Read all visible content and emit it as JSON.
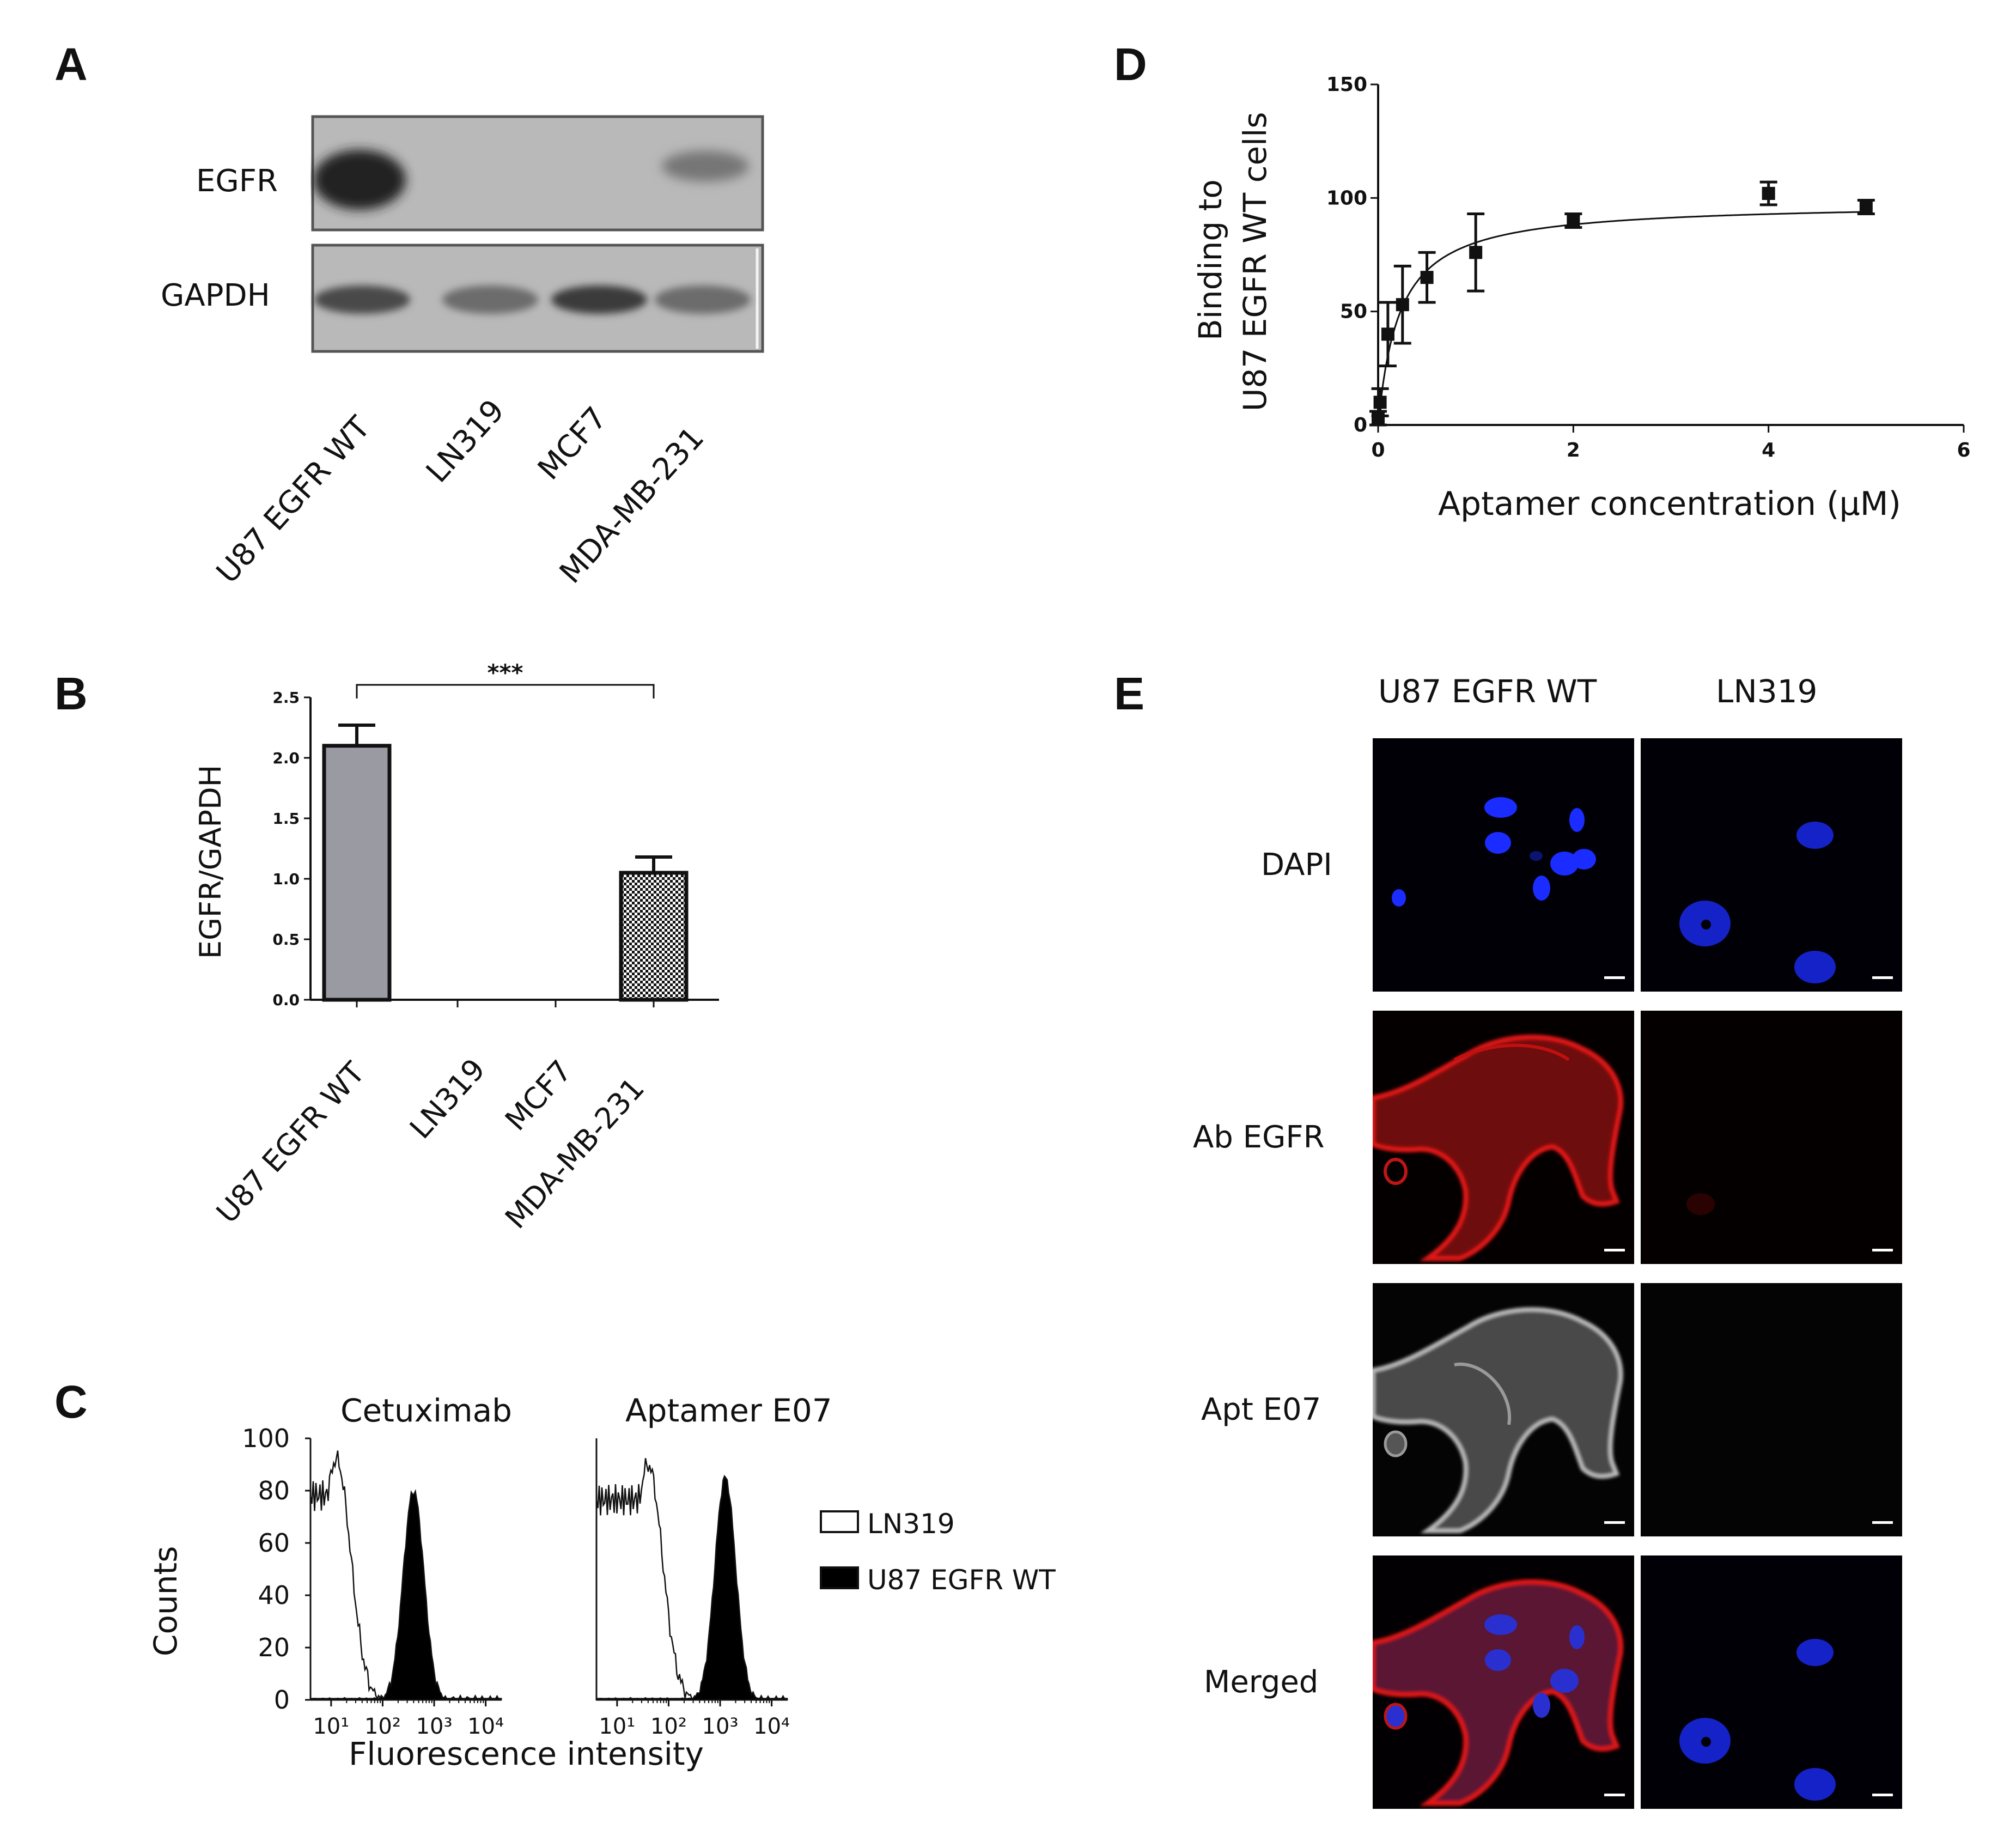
{
  "panels": {
    "A": "A",
    "B": "B",
    "C": "C",
    "D": "D",
    "E": "E"
  },
  "panel_a": {
    "row_labels": [
      "EGFR",
      "GAPDH"
    ],
    "lane_labels": [
      "U87 EGFR WT",
      "LN319",
      "MCF7",
      "MDA-MB-231"
    ],
    "egfr_band_intensity": [
      1.0,
      0.0,
      0.0,
      0.45
    ],
    "gapdh_band_intensity": [
      0.8,
      0.55,
      0.9,
      0.55
    ]
  },
  "panel_b": {
    "chart_data": {
      "type": "bar",
      "categories": [
        "U87 EGFR WT",
        "LN319",
        "MCF7",
        "MDA-MB-231"
      ],
      "values": [
        2.1,
        0,
        0,
        1.05
      ],
      "errors": [
        0.17,
        0,
        0,
        0.13
      ],
      "ylabel": "EGFR/GAPDH",
      "ylim": [
        0,
        2.5
      ],
      "yticks": [
        "0.0",
        "0.5",
        "1.0",
        "1.5",
        "2.0",
        "2.5"
      ],
      "significance": "***",
      "bar_fills": [
        "#9a9aa2",
        "#ffffff",
        "#ffffff",
        "checkered"
      ]
    }
  },
  "panel_c": {
    "chart_data": [
      {
        "type": "area",
        "title": "Cetuximab",
        "x_scale": "log",
        "xticks": [
          "10¹",
          "10²",
          "10³",
          "10⁴"
        ],
        "yticks": [
          "0",
          "20",
          "40",
          "60",
          "80",
          "100"
        ],
        "ylim": [
          0,
          100
        ],
        "series": [
          {
            "name": "LN319",
            "fill": "none",
            "peak_log_x": 1.1,
            "peak_y": 92
          },
          {
            "name": "U87 EGFR WT",
            "fill": "#000000",
            "peak_log_x": 2.6,
            "peak_y": 80
          }
        ]
      },
      {
        "type": "area",
        "title": "Aptamer E07",
        "x_scale": "log",
        "xticks": [
          "10¹",
          "10²",
          "10³",
          "10⁴"
        ],
        "ylim": [
          0,
          100
        ],
        "series": [
          {
            "name": "LN319",
            "fill": "none",
            "peak_log_x": 1.6,
            "peak_y": 90
          },
          {
            "name": "U87 EGFR WT",
            "fill": "#000000",
            "peak_log_x": 3.1,
            "peak_y": 85
          }
        ]
      }
    ],
    "ylabel": "Counts",
    "xlabel": "Fluorescence intensity",
    "legend": [
      "LN319",
      "U87 EGFR WT"
    ]
  },
  "panel_d": {
    "chart_data": {
      "type": "scatter",
      "x": [
        0,
        0.02,
        0.1,
        0.25,
        0.5,
        1,
        2,
        4,
        5
      ],
      "y": [
        3,
        10,
        40,
        53,
        65,
        76,
        90,
        102,
        96
      ],
      "errors": [
        3,
        6,
        14,
        17,
        11,
        17,
        3,
        5,
        3
      ],
      "fit": "one-site binding",
      "bmax": 98,
      "kd": 0.22,
      "xlabel": "Aptamer concentration (µM)",
      "ylabel_lines": [
        "Binding to",
        "U87 EGFR WT cells"
      ],
      "xlim": [
        0,
        6
      ],
      "ylim": [
        0,
        150
      ],
      "xticks": [
        "0",
        "2",
        "4",
        "6"
      ],
      "yticks": [
        "0",
        "50",
        "100",
        "150"
      ]
    }
  },
  "panel_e": {
    "column_labels": [
      "U87 EGFR WT",
      "LN319"
    ],
    "row_labels": [
      "DAPI",
      "Ab EGFR",
      "Apt E07",
      "Merged"
    ]
  }
}
